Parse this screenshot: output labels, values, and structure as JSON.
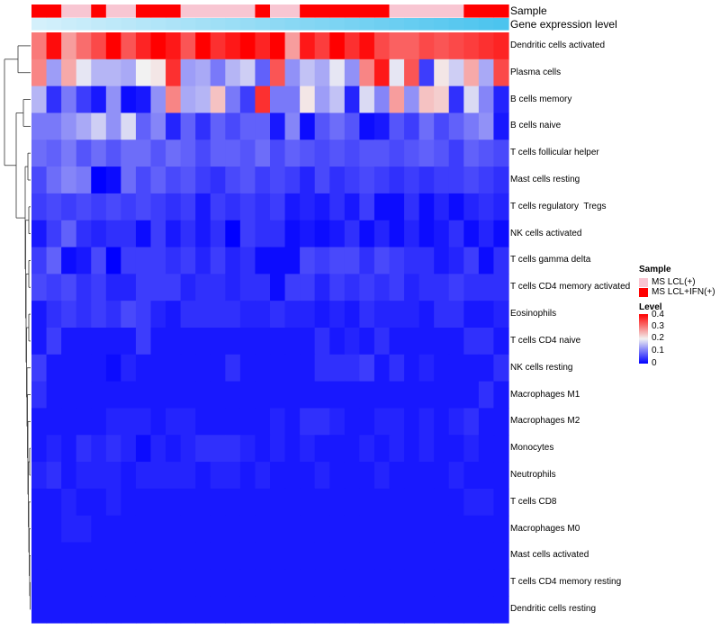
{
  "chart_data": {
    "type": "heatmap",
    "title": "",
    "colormap": {
      "low": "#0000ff",
      "mid": "#f2f2f2",
      "high": "#ff0000",
      "low_value": 0,
      "mid_value": 0.2,
      "high_value": 0.4
    },
    "annotations": [
      {
        "name": "Sample",
        "label": "Sample"
      },
      {
        "name": "Gene expression level",
        "label": "Gene expression level",
        "range": [
          "#d4f0fb",
          "#4cc4ee"
        ]
      }
    ],
    "sample_groups": [
      "MS LCL(+)",
      "MS LCL+IFN(+)"
    ],
    "sample_colors": {
      "MS LCL(+)": "#f8c6d2",
      "MS LCL+IFN(+)": "#ff0000"
    },
    "sample_annotation": [
      1,
      1,
      0,
      0,
      1,
      0,
      0,
      1,
      1,
      1,
      0,
      0,
      0,
      0,
      0,
      1,
      0,
      0,
      1,
      1,
      1,
      1,
      1,
      1,
      0,
      0,
      0,
      0,
      0,
      1,
      1,
      1
    ],
    "rows": [
      "Dendritic cells activated",
      "Plasma cells",
      "B cells memory",
      "B cells naive",
      "T cells follicular helper",
      "Mast cells resting",
      "T cells regulatory  Tregs",
      "NK cells activated",
      "T cells gamma delta",
      "T cells CD4 memory activated",
      "Eosinophils",
      "T cells CD4 naive",
      "NK cells resting",
      "Macrophages M1",
      "Macrophages M2",
      "Monocytes",
      "Neutrophils",
      "T cells CD8",
      "Macrophages M0",
      "Mast cells activated",
      "T cells CD4 memory resting",
      "Dendritic cells resting"
    ],
    "values": [
      [
        0.3,
        0.39,
        0.27,
        0.31,
        0.34,
        0.4,
        0.33,
        0.37,
        0.4,
        0.38,
        0.33,
        0.4,
        0.36,
        0.38,
        0.4,
        0.37,
        0.4,
        0.27,
        0.38,
        0.35,
        0.4,
        0.36,
        0.39,
        0.34,
        0.32,
        0.32,
        0.34,
        0.33,
        0.34,
        0.35,
        0.36,
        0.37
      ],
      [
        0.29,
        0.13,
        0.26,
        0.19,
        0.15,
        0.15,
        0.14,
        0.2,
        0.21,
        0.36,
        0.13,
        0.14,
        0.1,
        0.15,
        0.17,
        0.08,
        0.33,
        0.12,
        0.16,
        0.14,
        0.19,
        0.12,
        0.29,
        0.38,
        0.19,
        0.33,
        0.05,
        0.21,
        0.17,
        0.26,
        0.14,
        0.34
      ],
      [
        0.15,
        0.04,
        0.1,
        0.05,
        0.02,
        0.12,
        0.01,
        0.02,
        0.12,
        0.29,
        0.14,
        0.15,
        0.24,
        0.1,
        0.05,
        0.36,
        0.1,
        0.1,
        0.21,
        0.13,
        0.16,
        0.03,
        0.18,
        0.11,
        0.27,
        0.12,
        0.24,
        0.23,
        0.04,
        0.18,
        0.11,
        0.03
      ],
      [
        0.1,
        0.1,
        0.12,
        0.14,
        0.17,
        0.12,
        0.18,
        0.08,
        0.11,
        0.03,
        0.08,
        0.04,
        0.08,
        0.06,
        0.08,
        0.08,
        0.02,
        0.11,
        0.01,
        0.07,
        0.09,
        0.07,
        0.01,
        0.02,
        0.07,
        0.05,
        0.09,
        0.06,
        0.08,
        0.1,
        0.12,
        0.02
      ],
      [
        0.09,
        0.08,
        0.1,
        0.07,
        0.09,
        0.07,
        0.09,
        0.09,
        0.07,
        0.09,
        0.08,
        0.06,
        0.08,
        0.08,
        0.07,
        0.09,
        0.06,
        0.08,
        0.07,
        0.06,
        0.07,
        0.06,
        0.07,
        0.07,
        0.06,
        0.07,
        0.08,
        0.07,
        0.05,
        0.08,
        0.07,
        0.06
      ],
      [
        0.06,
        0.09,
        0.11,
        0.1,
        0.0,
        0.01,
        0.09,
        0.06,
        0.08,
        0.06,
        0.07,
        0.05,
        0.04,
        0.06,
        0.07,
        0.05,
        0.06,
        0.05,
        0.03,
        0.06,
        0.04,
        0.05,
        0.06,
        0.05,
        0.04,
        0.05,
        0.04,
        0.05,
        0.05,
        0.06,
        0.05,
        0.04
      ],
      [
        0.05,
        0.06,
        0.05,
        0.06,
        0.05,
        0.06,
        0.05,
        0.06,
        0.05,
        0.04,
        0.05,
        0.02,
        0.05,
        0.04,
        0.05,
        0.04,
        0.05,
        0.02,
        0.03,
        0.02,
        0.04,
        0.02,
        0.05,
        0.01,
        0.01,
        0.04,
        0.01,
        0.03,
        0.01,
        0.03,
        0.04,
        0.03
      ],
      [
        0.02,
        0.05,
        0.08,
        0.04,
        0.03,
        0.04,
        0.04,
        0.01,
        0.05,
        0.02,
        0.04,
        0.02,
        0.04,
        0.0,
        0.05,
        0.04,
        0.04,
        0.01,
        0.02,
        0.01,
        0.02,
        0.04,
        0.01,
        0.03,
        0.01,
        0.03,
        0.01,
        0.02,
        0.04,
        0.01,
        0.03,
        0.01
      ],
      [
        0.05,
        0.08,
        0.01,
        0.02,
        0.06,
        0.0,
        0.05,
        0.05,
        0.05,
        0.04,
        0.05,
        0.03,
        0.05,
        0.03,
        0.04,
        0.01,
        0.01,
        0.01,
        0.06,
        0.05,
        0.06,
        0.06,
        0.04,
        0.06,
        0.05,
        0.04,
        0.04,
        0.02,
        0.03,
        0.05,
        0.01,
        0.04
      ],
      [
        0.06,
        0.05,
        0.06,
        0.04,
        0.05,
        0.03,
        0.03,
        0.05,
        0.05,
        0.05,
        0.03,
        0.04,
        0.04,
        0.03,
        0.04,
        0.04,
        0.01,
        0.05,
        0.05,
        0.03,
        0.05,
        0.04,
        0.05,
        0.04,
        0.05,
        0.03,
        0.04,
        0.04,
        0.05,
        0.04,
        0.04,
        0.04
      ],
      [
        0.02,
        0.04,
        0.05,
        0.04,
        0.05,
        0.04,
        0.06,
        0.05,
        0.03,
        0.02,
        0.04,
        0.04,
        0.04,
        0.04,
        0.03,
        0.03,
        0.04,
        0.03,
        0.03,
        0.02,
        0.03,
        0.02,
        0.04,
        0.03,
        0.03,
        0.03,
        0.02,
        0.04,
        0.04,
        0.02,
        0.02,
        0.03
      ],
      [
        0.02,
        0.05,
        0.02,
        0.02,
        0.02,
        0.02,
        0.02,
        0.05,
        0.02,
        0.02,
        0.02,
        0.02,
        0.02,
        0.02,
        0.02,
        0.02,
        0.02,
        0.02,
        0.02,
        0.04,
        0.02,
        0.03,
        0.02,
        0.04,
        0.02,
        0.02,
        0.02,
        0.02,
        0.02,
        0.04,
        0.04,
        0.02
      ],
      [
        0.05,
        0.02,
        0.02,
        0.02,
        0.02,
        0.01,
        0.03,
        0.02,
        0.02,
        0.02,
        0.02,
        0.02,
        0.02,
        0.04,
        0.02,
        0.02,
        0.02,
        0.02,
        0.02,
        0.04,
        0.04,
        0.04,
        0.05,
        0.02,
        0.04,
        0.02,
        0.03,
        0.02,
        0.02,
        0.02,
        0.02,
        0.04
      ],
      [
        0.04,
        0.02,
        0.02,
        0.02,
        0.02,
        0.02,
        0.02,
        0.02,
        0.02,
        0.02,
        0.02,
        0.02,
        0.02,
        0.02,
        0.02,
        0.02,
        0.02,
        0.02,
        0.02,
        0.02,
        0.02,
        0.02,
        0.02,
        0.02,
        0.02,
        0.02,
        0.02,
        0.02,
        0.02,
        0.02,
        0.04,
        0.02
      ],
      [
        0.02,
        0.02,
        0.02,
        0.02,
        0.02,
        0.03,
        0.03,
        0.03,
        0.02,
        0.03,
        0.03,
        0.02,
        0.02,
        0.02,
        0.02,
        0.02,
        0.03,
        0.02,
        0.04,
        0.04,
        0.03,
        0.02,
        0.02,
        0.03,
        0.03,
        0.02,
        0.03,
        0.02,
        0.03,
        0.04,
        0.02,
        0.02
      ],
      [
        0.02,
        0.03,
        0.02,
        0.04,
        0.03,
        0.04,
        0.03,
        0.01,
        0.03,
        0.02,
        0.03,
        0.04,
        0.04,
        0.04,
        0.03,
        0.02,
        0.03,
        0.02,
        0.03,
        0.02,
        0.02,
        0.02,
        0.03,
        0.02,
        0.03,
        0.02,
        0.03,
        0.02,
        0.02,
        0.03,
        0.02,
        0.02
      ],
      [
        0.03,
        0.04,
        0.02,
        0.03,
        0.03,
        0.03,
        0.02,
        0.03,
        0.03,
        0.03,
        0.03,
        0.02,
        0.03,
        0.03,
        0.02,
        0.03,
        0.02,
        0.02,
        0.02,
        0.03,
        0.02,
        0.02,
        0.02,
        0.03,
        0.02,
        0.02,
        0.02,
        0.02,
        0.03,
        0.02,
        0.02,
        0.02
      ],
      [
        0.02,
        0.02,
        0.03,
        0.02,
        0.02,
        0.03,
        0.02,
        0.02,
        0.02,
        0.02,
        0.02,
        0.02,
        0.02,
        0.02,
        0.02,
        0.02,
        0.02,
        0.02,
        0.02,
        0.02,
        0.02,
        0.02,
        0.02,
        0.02,
        0.02,
        0.02,
        0.02,
        0.02,
        0.02,
        0.03,
        0.03,
        0.02
      ],
      [
        0.02,
        0.02,
        0.03,
        0.03,
        0.02,
        0.02,
        0.02,
        0.02,
        0.02,
        0.02,
        0.02,
        0.02,
        0.02,
        0.02,
        0.02,
        0.02,
        0.02,
        0.02,
        0.02,
        0.02,
        0.02,
        0.02,
        0.02,
        0.02,
        0.02,
        0.02,
        0.02,
        0.02,
        0.02,
        0.02,
        0.02,
        0.02
      ],
      [
        0.02,
        0.02,
        0.02,
        0.02,
        0.02,
        0.02,
        0.02,
        0.02,
        0.02,
        0.02,
        0.02,
        0.02,
        0.02,
        0.02,
        0.02,
        0.02,
        0.02,
        0.02,
        0.02,
        0.02,
        0.02,
        0.02,
        0.02,
        0.02,
        0.02,
        0.02,
        0.02,
        0.02,
        0.02,
        0.02,
        0.02,
        0.02
      ],
      [
        0.02,
        0.02,
        0.02,
        0.02,
        0.02,
        0.02,
        0.02,
        0.02,
        0.02,
        0.02,
        0.02,
        0.02,
        0.02,
        0.02,
        0.02,
        0.02,
        0.02,
        0.02,
        0.02,
        0.02,
        0.02,
        0.02,
        0.02,
        0.02,
        0.02,
        0.02,
        0.02,
        0.02,
        0.02,
        0.02,
        0.02,
        0.02
      ],
      [
        0.02,
        0.02,
        0.02,
        0.02,
        0.02,
        0.02,
        0.02,
        0.02,
        0.02,
        0.02,
        0.02,
        0.02,
        0.02,
        0.02,
        0.02,
        0.02,
        0.02,
        0.02,
        0.02,
        0.02,
        0.02,
        0.02,
        0.02,
        0.02,
        0.02,
        0.02,
        0.02,
        0.02,
        0.02,
        0.02,
        0.02,
        0.02
      ]
    ],
    "dendrogram": "rows clustered (hierarchical), drawn on the left",
    "legend": {
      "sample": {
        "title": "Sample",
        "entries": [
          "MS LCL(+)",
          "MS LCL+IFN(+)"
        ]
      },
      "level": {
        "title": "Level",
        "ticks": [
          "0.4",
          "0.3",
          "0.2",
          "0.1",
          "0"
        ]
      }
    }
  }
}
